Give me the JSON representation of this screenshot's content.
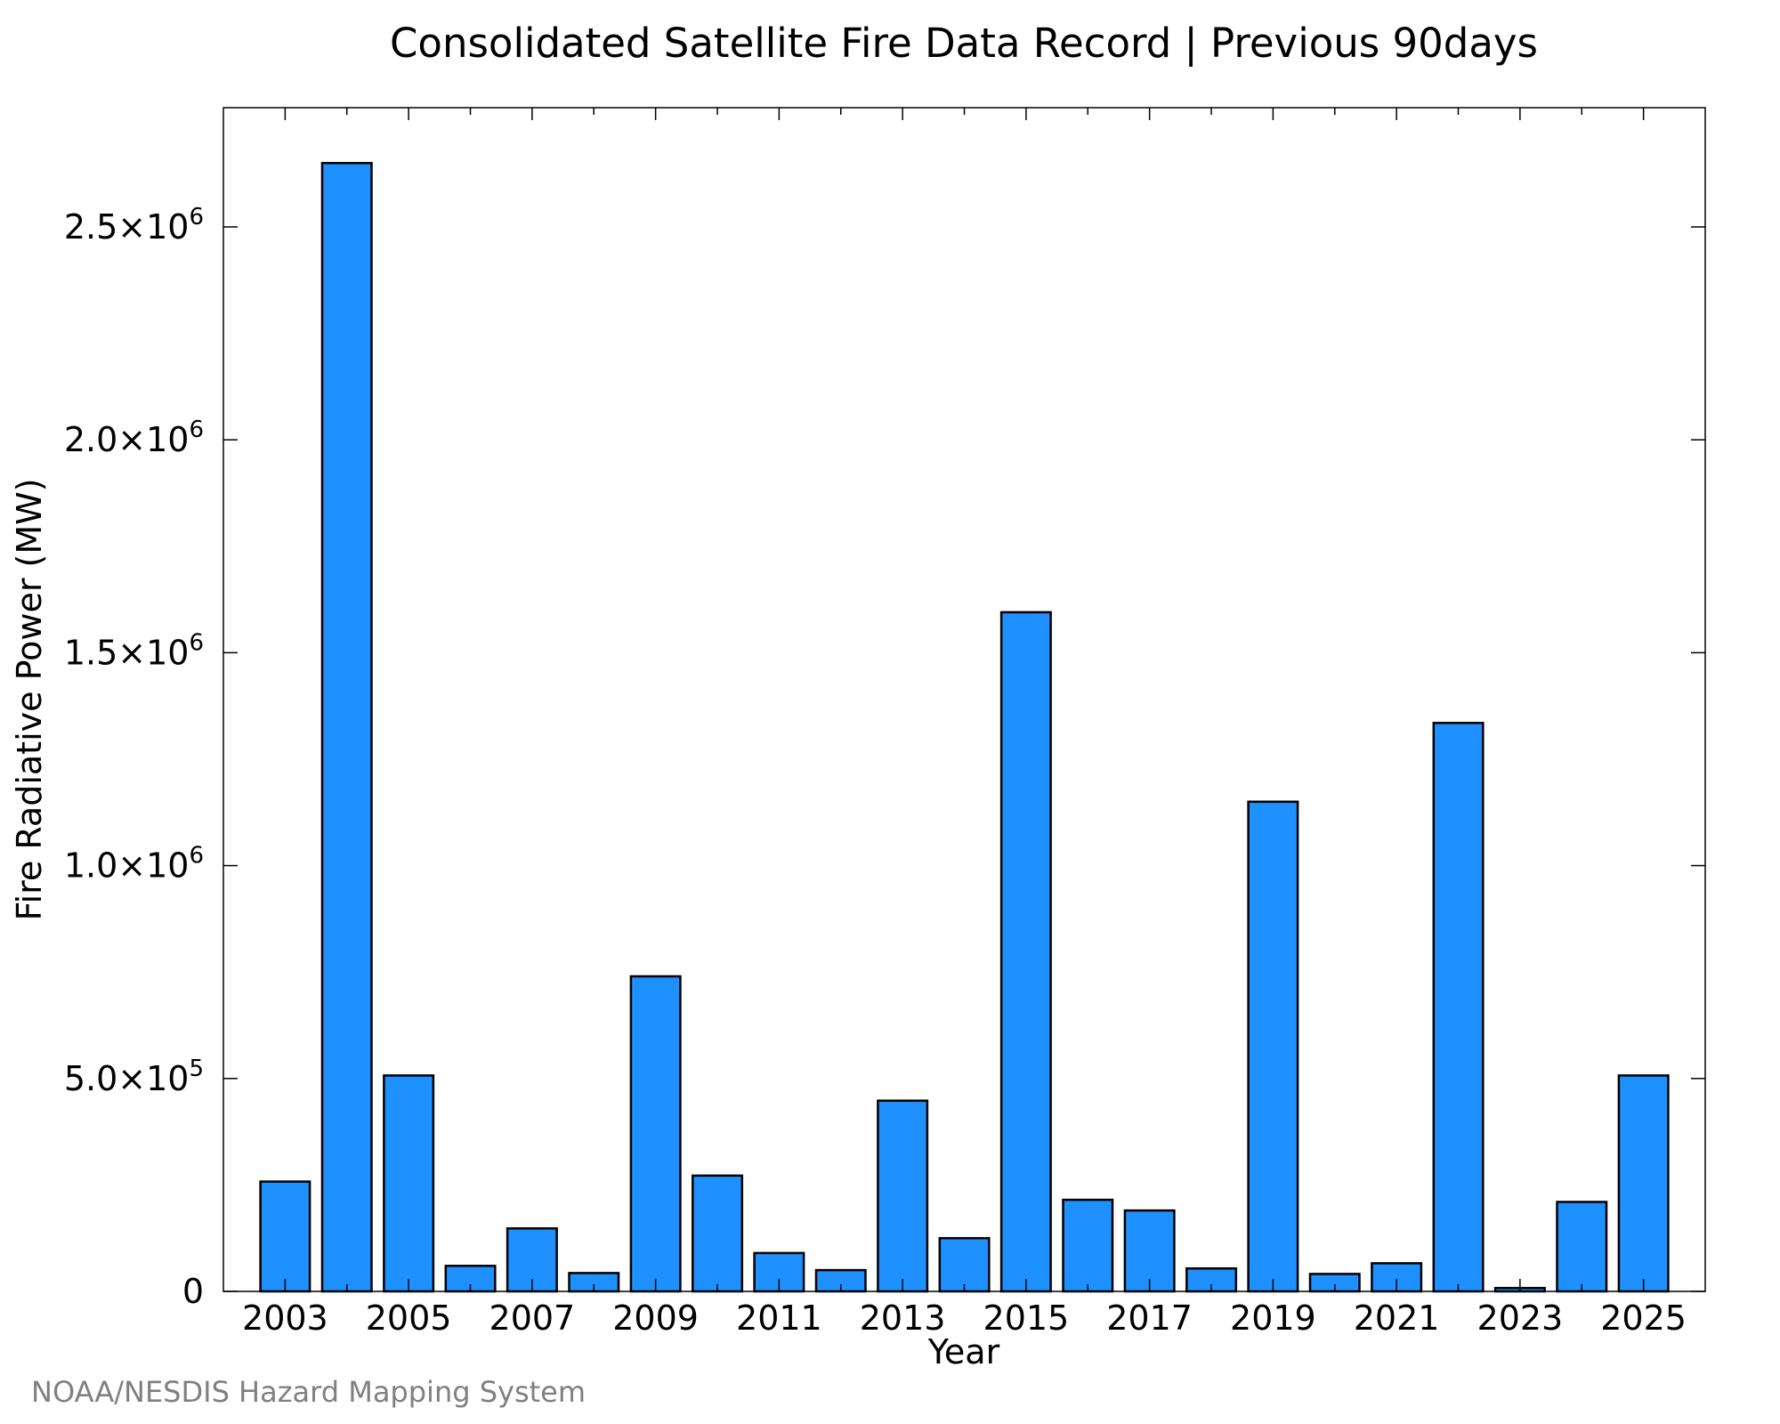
{
  "chart_data": {
    "type": "bar",
    "title": "Consolidated Satellite Fire Data Record | Previous 90days",
    "xlabel": "Year",
    "ylabel": "Fire Radiative Power (MW)",
    "credit": "NOAA/NESDIS Hazard Mapping System",
    "categories": [
      2003,
      2004,
      2005,
      2006,
      2007,
      2008,
      2009,
      2010,
      2011,
      2012,
      2013,
      2014,
      2015,
      2016,
      2017,
      2018,
      2019,
      2020,
      2021,
      2022,
      2023,
      2024,
      2025
    ],
    "values": [
      258000,
      2650000,
      507000,
      60000,
      148000,
      43000,
      740000,
      272000,
      90000,
      50000,
      448000,
      125000,
      1595000,
      215000,
      190000,
      54000,
      1150000,
      41000,
      66000,
      1335000,
      8000,
      210000,
      507000
    ],
    "xlim": [
      2002,
      2026
    ],
    "ylim": [
      0,
      2780000
    ],
    "x_tick_labels": [
      "2003",
      "2005",
      "2007",
      "2009",
      "2011",
      "2013",
      "2015",
      "2017",
      "2019",
      "2021",
      "2023",
      "2025"
    ],
    "y_ticks": [
      {
        "value": 0,
        "mantissa": "0",
        "exp": ""
      },
      {
        "value": 500000,
        "mantissa": "5.0×10",
        "exp": "5"
      },
      {
        "value": 1000000,
        "mantissa": "1.0×10",
        "exp": "6"
      },
      {
        "value": 1500000,
        "mantissa": "1.5×10",
        "exp": "6"
      },
      {
        "value": 2000000,
        "mantissa": "2.0×10",
        "exp": "6"
      },
      {
        "value": 2500000,
        "mantissa": "2.5×10",
        "exp": "6"
      }
    ],
    "bar_color": "#1E90FF",
    "bar_edge_color": "#000000",
    "grid": false,
    "legend": "none"
  }
}
